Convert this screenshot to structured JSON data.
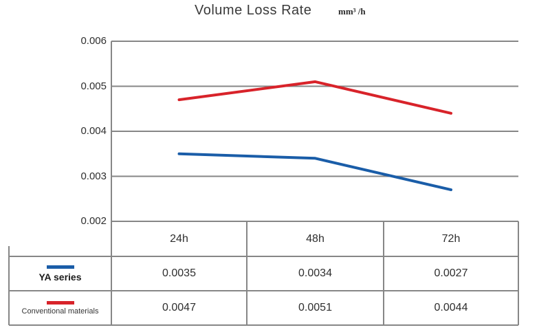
{
  "chart": {
    "title": "Volume Loss Rate",
    "unit": "mm³ /h"
  },
  "chart_data": {
    "type": "line",
    "title": "Volume Loss Rate",
    "unit_label": "mm³ /h",
    "xlabel": "",
    "ylabel": "",
    "categories": [
      "24h",
      "48h",
      "72h"
    ],
    "series": [
      {
        "name": "YA series",
        "color": "#1A5DA8",
        "values": [
          0.0035,
          0.0034,
          0.0027
        ],
        "value_labels": [
          "0.0035",
          "0.0034",
          "0.0027"
        ]
      },
      {
        "name": "Conventional materials",
        "color": "#D8232A",
        "values": [
          0.0047,
          0.0051,
          0.0044
        ],
        "value_labels": [
          "0.0047",
          "0.0051",
          "0.0044"
        ]
      }
    ],
    "ylim": [
      0.002,
      0.006
    ],
    "yticks": [
      "0.006",
      "0.005",
      "0.004",
      "0.003",
      "0.002"
    ],
    "grid": true,
    "grid_color": "#868686",
    "legend_position": "table-left"
  }
}
